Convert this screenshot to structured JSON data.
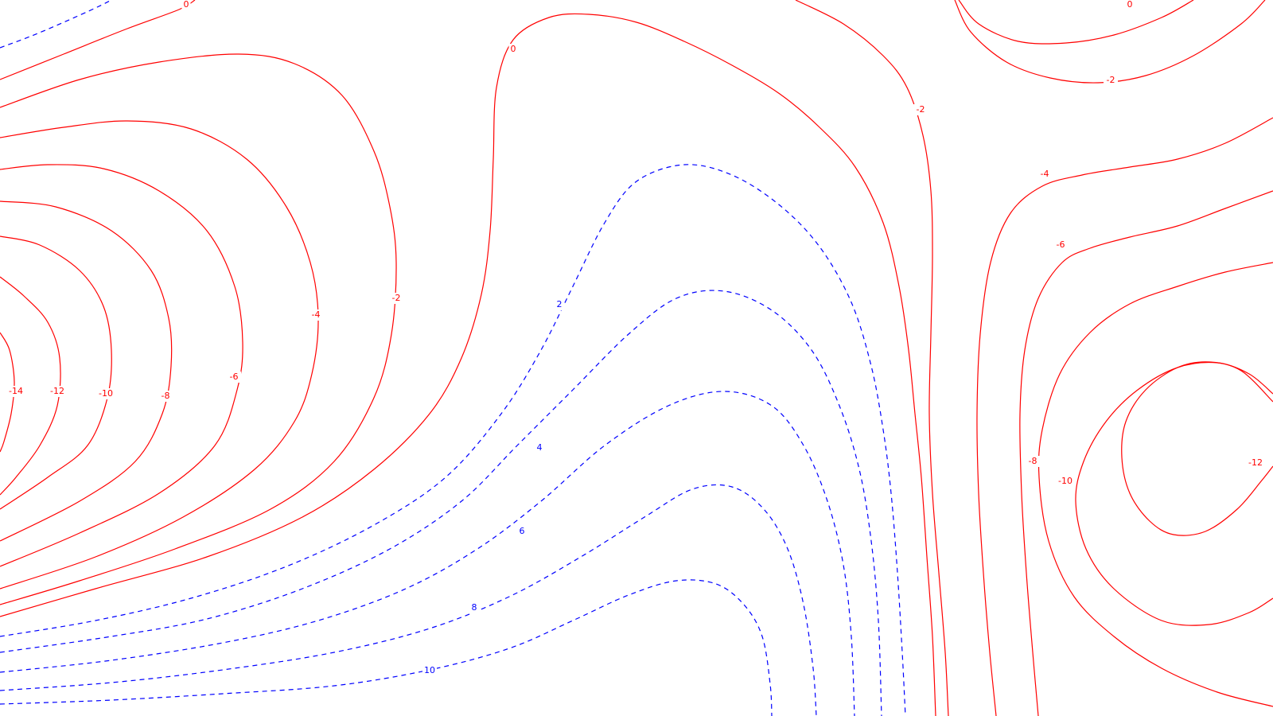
{
  "chart_data": {
    "type": "contour",
    "title": "",
    "xlabel": "",
    "ylabel": "",
    "negative_color": "#ff0000",
    "positive_color": "#0000ff",
    "negative_style": "solid",
    "positive_style": "dashed",
    "levels": [
      -14,
      -12,
      -10,
      -8,
      -6,
      -4,
      -2,
      0,
      2,
      4,
      6,
      8,
      10
    ],
    "contour_labels": [
      {
        "value": 0,
        "text": "0"
      },
      {
        "value": 0,
        "text": "0"
      },
      {
        "value": 0,
        "text": "0"
      },
      {
        "value": -2,
        "text": "-2"
      },
      {
        "value": -2,
        "text": "-2"
      },
      {
        "value": -2,
        "text": "-2"
      },
      {
        "value": -4,
        "text": "-4"
      },
      {
        "value": -4,
        "text": "-4"
      },
      {
        "value": -6,
        "text": "-6"
      },
      {
        "value": -6,
        "text": "-6"
      },
      {
        "value": -8,
        "text": "-8"
      },
      {
        "value": -8,
        "text": "-8"
      },
      {
        "value": -10,
        "text": "-10"
      },
      {
        "value": -10,
        "text": "-10"
      },
      {
        "value": -12,
        "text": "-12"
      },
      {
        "value": -12,
        "text": "-12"
      },
      {
        "value": -14,
        "text": "-14"
      },
      {
        "value": 2,
        "text": "2"
      },
      {
        "value": 4,
        "text": "4"
      },
      {
        "value": 6,
        "text": "6"
      },
      {
        "value": 8,
        "text": "8"
      },
      {
        "value": 10,
        "text": "10"
      }
    ]
  }
}
